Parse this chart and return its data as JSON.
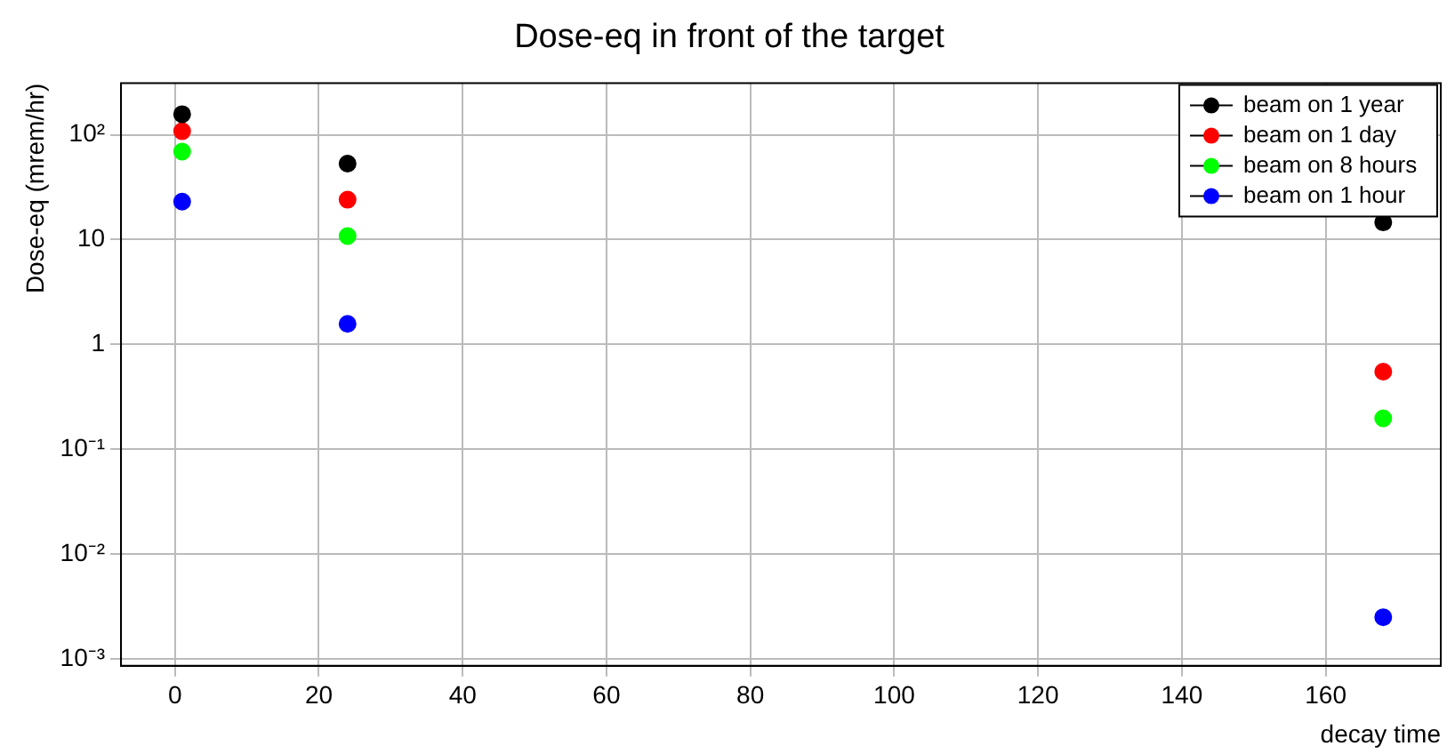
{
  "chart_data": {
    "type": "scatter",
    "title": "Dose-eq in front of the target",
    "xlabel": "decay time",
    "ylabel": "Dose-eq (mrem/hr)",
    "x": [
      1,
      24,
      168
    ],
    "series": [
      {
        "name": "beam on 1 year",
        "color": "#000000",
        "values": [
          157,
          53,
          14.6
        ]
      },
      {
        "name": "beam on 1 day",
        "color": "#ff0000",
        "values": [
          108,
          24,
          0.55
        ]
      },
      {
        "name": "beam on 8 hours",
        "color": "#00ff00",
        "values": [
          69,
          10.8,
          0.197
        ]
      },
      {
        "name": "beam on 1 hour",
        "color": "#0000ff",
        "values": [
          23,
          1.57,
          0.0025
        ]
      }
    ],
    "xlim": [
      -7.5,
      176
    ],
    "xticks": [
      0,
      20,
      40,
      60,
      80,
      100,
      120,
      140,
      160
    ],
    "ylim": [
      0.00086,
      310
    ],
    "yticks": [
      {
        "value": 0.001,
        "label": "10⁻³"
      },
      {
        "value": 0.01,
        "label": "10⁻²"
      },
      {
        "value": 0.1,
        "label": "10⁻¹"
      },
      1,
      10,
      {
        "value": 100,
        "label": "10²"
      }
    ],
    "log": "y",
    "grid": true,
    "legend": "top right",
    "marker": "circle"
  }
}
